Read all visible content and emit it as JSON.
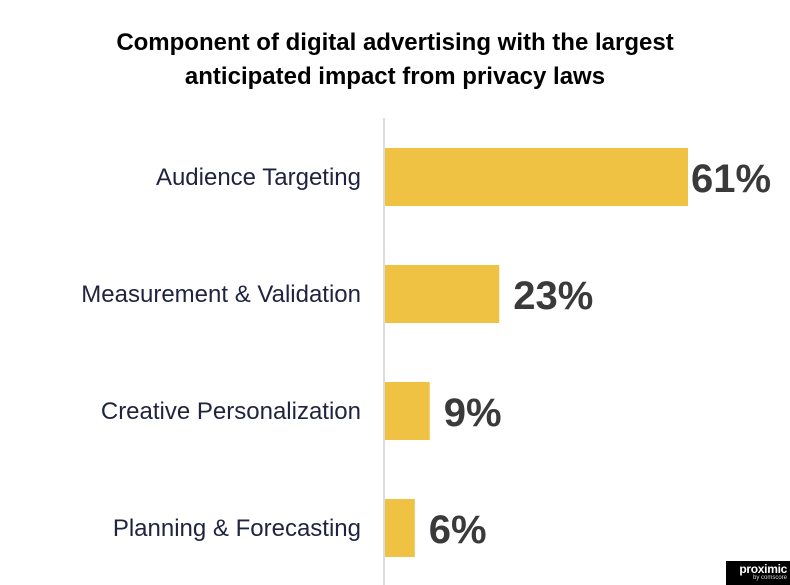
{
  "chart_data": {
    "type": "bar",
    "orientation": "horizontal",
    "title_lines": [
      "Component of digital advertising with the largest",
      "anticipated impact from privacy laws"
    ],
    "categories": [
      "Audience Targeting",
      "Measurement & Validation",
      "Creative Personalization",
      "Planning & Forecasting"
    ],
    "values": [
      61,
      23,
      9,
      6
    ],
    "value_labels": [
      "61%",
      "23%",
      "9%",
      "6%"
    ],
    "unit": "%",
    "xlim": [
      0,
      61
    ],
    "grid": false,
    "legend": "none",
    "bar_color": "#efc244",
    "axis_color": "#d0d0d0"
  },
  "logo": {
    "name": "proximic",
    "sub": "by comscore"
  }
}
